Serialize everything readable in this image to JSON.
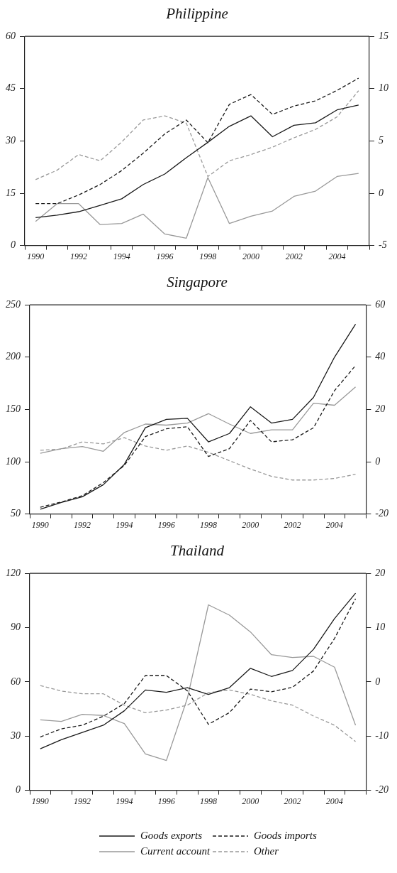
{
  "chart_data": [
    {
      "type": "line",
      "title": "Philippine",
      "categories": [
        "1990",
        null,
        "1992",
        null,
        "1994",
        null,
        "1996",
        null,
        "1998",
        null,
        "2000",
        null,
        "2002",
        null,
        "2004",
        null
      ],
      "ylim": [
        0,
        60
      ],
      "yticks": [
        0,
        15,
        30,
        45,
        60
      ],
      "y2lim": [
        -5,
        15
      ],
      "y2ticks": [
        -5,
        0,
        5,
        10,
        15
      ],
      "legend": false,
      "series": [
        {
          "color": "#1a1a1a",
          "line_style": "solid",
          "values": [
            8,
            8.7,
            9.7,
            11.5,
            13.4,
            17.5,
            20.5,
            25.2,
            29.6,
            34.2,
            37.2,
            31.2,
            34.5,
            35.2,
            38.9,
            40.3
          ]
        },
        {
          "color": "#1a1a1a",
          "line_style": "dashed",
          "values": [
            12,
            12,
            14.5,
            17.5,
            21.5,
            26.5,
            32,
            36,
            29.5,
            40.5,
            43.3,
            37.6,
            40,
            41.5,
            44.5,
            48
          ]
        },
        {
          "color": "#999999",
          "line_style": "solid",
          "axis": "y2",
          "values": [
            -2.7,
            -1,
            -1,
            -3,
            -2.9,
            -2,
            -3.9,
            -4.3,
            1.5,
            -2.9,
            -2.2,
            -1.7,
            -0.3,
            0.2,
            1.6,
            1.9
          ]
        },
        {
          "color": "#999999",
          "line_style": "dashed",
          "axis": "y2",
          "values": [
            1.3,
            2.2,
            3.7,
            3.1,
            4.9,
            7,
            7.4,
            6.7,
            1.6,
            3.1,
            3.7,
            4.4,
            5.3,
            6.1,
            7.3,
            9.8
          ]
        }
      ]
    },
    {
      "type": "line",
      "title": "Singapore",
      "categories": [
        "1990",
        null,
        "1992",
        null,
        "1994",
        null,
        "1996",
        null,
        "1998",
        null,
        "2000",
        null,
        "2002",
        null,
        "2004",
        null
      ],
      "ylim": [
        50,
        250
      ],
      "yticks": [
        50,
        100,
        150,
        200,
        250
      ],
      "y2lim": [
        -20,
        60
      ],
      "y2ticks": [
        -20,
        0,
        20,
        40,
        60
      ],
      "legend": false,
      "series": [
        {
          "color": "#1a1a1a",
          "line_style": "solid",
          "values": [
            54.5,
            61,
            66.5,
            78,
            97.5,
            132.5,
            140.5,
            141.5,
            119,
            127,
            152.5,
            137,
            140.5,
            161.5,
            200,
            231.5
          ]
        },
        {
          "color": "#1a1a1a",
          "line_style": "dashed",
          "values": [
            56.5,
            61.5,
            67.5,
            80,
            96.5,
            124,
            131.5,
            133.5,
            105,
            112.5,
            139.5,
            119,
            121,
            132.5,
            168,
            192
          ]
        },
        {
          "color": "#999999",
          "line_style": "solid",
          "axis": "y2",
          "values": [
            3.2,
            5,
            5.8,
            4,
            11.2,
            14.4,
            14,
            14.8,
            18.4,
            14.4,
            10.8,
            12.2,
            12.2,
            22.4,
            21.6,
            28.6
          ]
        },
        {
          "color": "#999999",
          "line_style": "dashed",
          "axis": "y2",
          "values": [
            4.4,
            4.8,
            7.6,
            6.8,
            9.2,
            6,
            4.4,
            6,
            3.6,
            0.4,
            -2.8,
            -5.6,
            -7,
            -7,
            -6.4,
            -4.8
          ]
        }
      ]
    },
    {
      "type": "line",
      "title": "Thailand",
      "categories": [
        "1990",
        null,
        "1992",
        null,
        "1994",
        null,
        "1996",
        null,
        "1998",
        null,
        "2000",
        null,
        "2002",
        null,
        "2004",
        null
      ],
      "ylim": [
        0,
        120
      ],
      "yticks": [
        0,
        30,
        60,
        90,
        120
      ],
      "y2lim": [
        -20,
        20
      ],
      "y2ticks": [
        -20,
        -10,
        0,
        10,
        20
      ],
      "legend": "bottom",
      "series": [
        {
          "name": "Goods exports",
          "color": "#1a1a1a",
          "line_style": "solid",
          "values": [
            23,
            28,
            32,
            36,
            44,
            55.5,
            54.2,
            56.8,
            53,
            56.8,
            67.5,
            63,
            66.3,
            78,
            95,
            109
          ]
        },
        {
          "name": "Goods imports",
          "color": "#1a1a1a",
          "line_style": "dashed",
          "values": [
            29.5,
            34,
            36,
            41,
            48,
            63.5,
            63.5,
            55,
            36.5,
            43,
            56,
            54.5,
            57,
            66,
            84,
            106
          ]
        },
        {
          "name": "Current account",
          "color": "#999999",
          "line_style": "solid",
          "axis": "y2",
          "values": [
            -7,
            -7.3,
            -6,
            -6.2,
            -7.7,
            -13.3,
            -14.5,
            -3,
            14.2,
            12.3,
            9.2,
            5,
            4.5,
            4.7,
            2.7,
            -8
          ]
        },
        {
          "name": "Other",
          "color": "#999999",
          "line_style": "dashed",
          "axis": "y2",
          "values": [
            -0.7,
            -1.7,
            -2.2,
            -2.2,
            -4.3,
            -5.7,
            -5.2,
            -4.3,
            -2,
            -1.5,
            -2.3,
            -3.5,
            -4.3,
            -6.3,
            -8,
            -11
          ]
        }
      ]
    }
  ]
}
